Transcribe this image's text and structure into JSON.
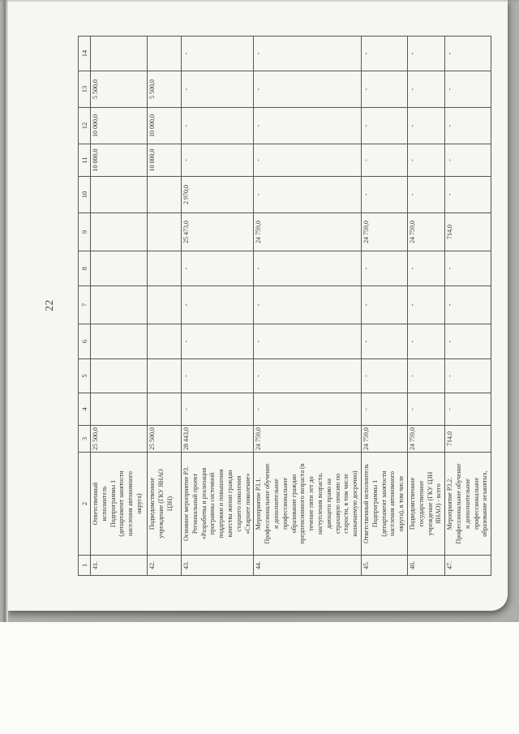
{
  "page_number": "22",
  "table": {
    "header_row": [
      "1",
      "2",
      "3",
      "4",
      "5",
      "6",
      "7",
      "8",
      "9",
      "10",
      "11",
      "12",
      "13",
      "14"
    ],
    "rows": [
      {
        "num": "41.",
        "text": "Ответственный\nисполнитель\nПодпрограммы 1\n(департамент занятости\nнаселения автономного\nокруга)",
        "values": [
          "25 500,0",
          "",
          "",
          "",
          "",
          "",
          "",
          "",
          "10 000,0",
          "10 000,0",
          "5 500,0",
          ""
        ]
      },
      {
        "num": "42.",
        "text": "Подведомственное\nучреждение (ГКУ ЯНАО\nЦЗН)",
        "values": [
          "25 500,0",
          "",
          "",
          "",
          "",
          "",
          "",
          "",
          "10 000,0",
          "10 000,0",
          "5 500,0",
          ""
        ]
      },
      {
        "num": "43.",
        "text": "Основное мероприятие Р3.\nРегиональный проект\n«Разработка и реализация\nпрограммы системной\nподдержки и повышения\nкачества жизни граждан\nстаршего поколения\n«Старшее поколение»",
        "values": [
          "28 443,0",
          "-",
          "-",
          "-",
          "-",
          "-",
          "25 473,0",
          "2 970,0",
          "-",
          "-",
          "-",
          "-"
        ]
      },
      {
        "num": "44.",
        "text": "Мероприятие Р3.1.\nПрофессиональное обучение\nи дополнительное\nпрофессиональное\nобразование граждан\nпредпенсионного возраста (в\nтечение пяти лет до\nнаступления возраста,\nдающего право на\nстраховую пенсию по\nстарости, в том числе\nназначаемую досрочно)",
        "values": [
          "24 759,0",
          "-",
          "-",
          "-",
          "-",
          "-",
          "24 759,0",
          "-",
          "-",
          "-",
          "-",
          "-"
        ]
      },
      {
        "num": "45.",
        "text": "Ответственный исполнитель\nПодпрограммы 1\n(департамент занятости\nнаселения автономного\nокруга), в том числе",
        "values": [
          "24 759,0",
          "-",
          "-",
          "-",
          "-",
          "-",
          "24 759,0",
          "-",
          "-",
          "-",
          "-",
          "-"
        ]
      },
      {
        "num": "46.",
        "text": "Подведомственное\nгосударственное\nучреждение (ГКУ ЦЗН\nЯНАО) - всего",
        "values": [
          "24 759,0",
          "-",
          "-",
          "-",
          "-",
          "-",
          "24 759,0",
          "-",
          "-",
          "-",
          "-",
          "-"
        ]
      },
      {
        "num": "47.",
        "text": "Мероприятие Р3.2.\nПрофессиональное обучение\nи дополнительное\nпрофессиональное\nобразование незанятых,",
        "values": [
          "714,0",
          "-",
          "-",
          "-",
          "-",
          "-",
          "714,0",
          "-",
          "-",
          "-",
          "-",
          "-"
        ]
      }
    ]
  }
}
